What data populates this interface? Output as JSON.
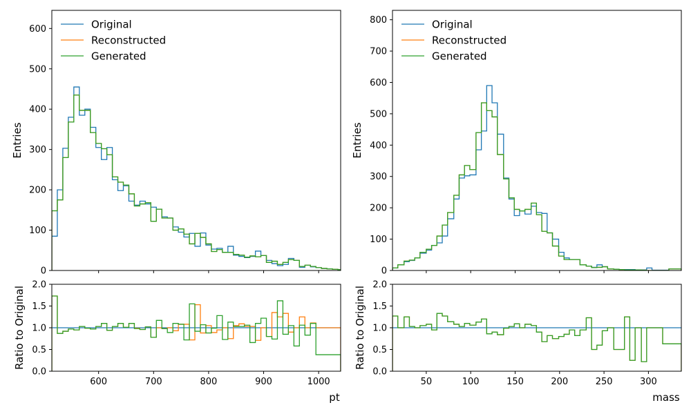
{
  "colors": {
    "original": "#1f77b4",
    "reconstructed": "#ff7f0e",
    "generated": "#2ca02c",
    "reference_line": "#1f77b4"
  },
  "chart_data": [
    {
      "type": "step-histogram",
      "xlabel": "",
      "ylabel": "Entries",
      "xlim": [
        515,
        1040
      ],
      "ylim": [
        0,
        645
      ],
      "xticks": [
        600,
        700,
        800,
        900,
        1000
      ],
      "xticklabels": [
        "",
        "",
        "",
        "",
        ""
      ],
      "yticks": [
        0,
        100,
        200,
        300,
        400,
        500,
        600
      ],
      "yticklabels": [
        "0",
        "100",
        "200",
        "300",
        "400",
        "500",
        "600"
      ],
      "legend_position": "upper-left",
      "bin_edges": [
        515,
        525,
        535,
        545,
        555,
        565,
        575,
        585,
        595,
        605,
        615,
        625,
        635,
        645,
        655,
        665,
        675,
        685,
        695,
        705,
        715,
        725,
        735,
        745,
        755,
        765,
        775,
        785,
        795,
        805,
        815,
        825,
        835,
        845,
        855,
        865,
        875,
        885,
        895,
        905,
        915,
        925,
        935,
        945,
        955,
        965,
        975,
        985,
        995,
        1005,
        1015,
        1025,
        1035,
        1040
      ],
      "series": [
        {
          "name": "Original",
          "values": [
            85,
            200,
            303,
            380,
            455,
            385,
            400,
            355,
            305,
            275,
            305,
            225,
            198,
            210,
            172,
            162,
            172,
            165,
            157,
            152,
            133,
            130,
            108,
            95,
            83,
            92,
            60,
            93,
            63,
            53,
            55,
            45,
            60,
            38,
            35,
            32,
            35,
            48,
            37,
            25,
            17,
            12,
            15,
            30,
            25,
            8,
            13,
            9,
            7,
            5,
            4,
            3,
            2
          ]
        },
        {
          "name": "Reconstructed",
          "values": [
            148,
            175,
            280,
            368,
            435,
            397,
            397,
            342,
            315,
            302,
            287,
            232,
            219,
            212,
            190,
            160,
            165,
            168,
            122,
            152,
            130,
            130,
            100,
            103,
            90,
            66,
            92,
            82,
            66,
            47,
            52,
            45,
            45,
            40,
            38,
            33,
            36,
            34,
            37,
            20,
            23,
            15,
            20,
            27,
            25,
            10,
            13,
            10,
            7,
            5,
            4,
            3,
            2
          ]
        },
        {
          "name": "Generated",
          "values": [
            148,
            175,
            280,
            368,
            435,
            397,
            397,
            342,
            315,
            302,
            287,
            232,
            219,
            212,
            190,
            160,
            165,
            168,
            122,
            152,
            130,
            130,
            100,
            103,
            90,
            66,
            92,
            82,
            66,
            47,
            52,
            45,
            45,
            40,
            38,
            33,
            36,
            34,
            37,
            20,
            23,
            15,
            20,
            27,
            25,
            10,
            13,
            10,
            7,
            5,
            4,
            3,
            2
          ]
        }
      ]
    },
    {
      "type": "step-histogram",
      "xlabel": "",
      "ylabel": "Entries",
      "xlim": [
        12,
        337
      ],
      "ylim": [
        0,
        830
      ],
      "xticks": [
        50,
        100,
        150,
        200,
        250,
        300
      ],
      "xticklabels": [
        "",
        "",
        "",
        "",
        "",
        ""
      ],
      "yticks": [
        0,
        100,
        200,
        300,
        400,
        500,
        600,
        700,
        800
      ],
      "yticklabels": [
        "0",
        "100",
        "200",
        "300",
        "400",
        "500",
        "600",
        "700",
        "800"
      ],
      "legend_position": "upper-left",
      "bin_edges": [
        12,
        18,
        25,
        31,
        37,
        43,
        50,
        56,
        62,
        68,
        74,
        81,
        87,
        93,
        99,
        106,
        112,
        118,
        124,
        130,
        137,
        143,
        149,
        155,
        161,
        168,
        174,
        180,
        186,
        192,
        199,
        205,
        211,
        217,
        223,
        230,
        236,
        242,
        248,
        254,
        261,
        267,
        273,
        279,
        285,
        292,
        298,
        304,
        310,
        316,
        323,
        329,
        337
      ],
      "series": [
        {
          "name": "Original",
          "values": [
            8,
            18,
            28,
            32,
            40,
            55,
            65,
            80,
            88,
            110,
            165,
            228,
            295,
            302,
            305,
            385,
            445,
            590,
            535,
            435,
            295,
            228,
            175,
            190,
            180,
            205,
            185,
            182,
            120,
            100,
            58,
            40,
            35,
            35,
            18,
            14,
            10,
            18,
            12,
            5,
            4,
            3,
            3,
            3,
            2,
            2,
            8,
            1,
            1,
            1,
            5,
            5
          ]
        },
        {
          "name": "Reconstructed",
          "values": [
            8,
            18,
            30,
            33,
            40,
            58,
            68,
            80,
            110,
            145,
            185,
            240,
            305,
            335,
            322,
            440,
            535,
            510,
            490,
            370,
            292,
            232,
            195,
            190,
            195,
            215,
            178,
            125,
            120,
            78,
            46,
            35,
            35,
            35,
            18,
            14,
            9,
            10,
            12,
            5,
            4,
            3,
            2,
            2,
            2,
            1,
            0,
            0,
            0,
            0,
            5,
            5
          ]
        },
        {
          "name": "Generated",
          "values": [
            8,
            18,
            30,
            33,
            40,
            58,
            68,
            80,
            110,
            145,
            185,
            240,
            305,
            335,
            322,
            440,
            535,
            510,
            490,
            370,
            292,
            232,
            195,
            190,
            195,
            215,
            178,
            125,
            120,
            78,
            46,
            35,
            35,
            35,
            18,
            14,
            9,
            10,
            12,
            5,
            4,
            3,
            2,
            2,
            2,
            1,
            0,
            0,
            0,
            0,
            5,
            5
          ]
        }
      ]
    },
    {
      "type": "step-ratio",
      "xlabel": "pt",
      "ylabel": "Ratio to Original",
      "xlim": [
        515,
        1040
      ],
      "ylim": [
        0,
        2
      ],
      "reference_line": 1.0,
      "xticks": [
        600,
        700,
        800,
        900,
        1000
      ],
      "xticklabels": [
        "600",
        "700",
        "800",
        "900",
        "1000"
      ],
      "yticks": [
        0,
        0.5,
        1.0,
        1.5,
        2.0
      ],
      "yticklabels": [
        "0.0",
        "0.5",
        "1.0",
        "1.5",
        "2.0"
      ],
      "bin_edges": [
        515,
        525,
        535,
        545,
        555,
        565,
        575,
        585,
        595,
        605,
        615,
        625,
        635,
        645,
        655,
        665,
        675,
        685,
        695,
        705,
        715,
        725,
        735,
        745,
        755,
        765,
        775,
        785,
        795,
        805,
        815,
        825,
        835,
        845,
        855,
        865,
        875,
        885,
        895,
        905,
        915,
        925,
        935,
        945,
        955,
        965,
        975,
        985,
        995,
        1005,
        1015,
        1025,
        1035,
        1040
      ],
      "series": [
        {
          "name": "Reconstructed",
          "values": [
            1.73,
            0.87,
            0.92,
            0.97,
            0.95,
            1.03,
            0.99,
            0.97,
            1.03,
            1.1,
            0.94,
            1.03,
            1.1,
            1.01,
            1.1,
            0.99,
            0.96,
            1.02,
            0.78,
            1.0,
            0.98,
            1.0,
            0.93,
            1.08,
            1.08,
            0.72,
            1.53,
            0.88,
            1.05,
            0.89,
            0.95,
            1.0,
            0.75,
            1.05,
            1.09,
            1.03,
            1.03,
            0.71,
            1.0,
            0.8,
            1.35,
            1.25,
            1.33,
            0.9,
            1.0,
            1.25,
            1.0,
            1.11,
            1.0,
            1.0,
            1.0,
            1.0,
            1.0
          ]
        },
        {
          "name": "Generated",
          "values": [
            1.73,
            0.87,
            0.92,
            0.97,
            0.95,
            1.03,
            0.99,
            0.97,
            1.03,
            1.1,
            0.94,
            1.03,
            1.1,
            1.01,
            1.1,
            0.98,
            0.96,
            1.02,
            0.78,
            1.17,
            0.98,
            0.89,
            1.1,
            1.08,
            0.72,
            1.55,
            0.92,
            1.07,
            0.88,
            0.99,
            1.28,
            0.73,
            1.13,
            1.03,
            1.03,
            1.06,
            0.66,
            1.1,
            1.22,
            0.8,
            0.74,
            1.62,
            0.85,
            1.05,
            0.58,
            1.06,
            0.83,
            1.1,
            0.38,
            0.38,
            0.38,
            0.38,
            0.38
          ]
        }
      ]
    },
    {
      "type": "step-ratio",
      "xlabel": "mass",
      "ylabel": "Ratio to Original",
      "xlim": [
        12,
        337
      ],
      "ylim": [
        0,
        2
      ],
      "reference_line": 1.0,
      "xticks": [
        50,
        100,
        150,
        200,
        250,
        300
      ],
      "xticklabels": [
        "50",
        "100",
        "150",
        "200",
        "250",
        "300"
      ],
      "yticks": [
        0,
        0.5,
        1.0,
        1.5,
        2.0
      ],
      "yticklabels": [
        "0.0",
        "0.5",
        "1.0",
        "1.5",
        "2.0"
      ],
      "bin_edges": [
        12,
        18,
        25,
        31,
        37,
        43,
        50,
        56,
        62,
        68,
        74,
        81,
        87,
        93,
        99,
        106,
        112,
        118,
        124,
        130,
        137,
        143,
        149,
        155,
        161,
        168,
        174,
        180,
        186,
        192,
        199,
        205,
        211,
        217,
        223,
        230,
        236,
        242,
        248,
        254,
        261,
        267,
        273,
        279,
        285,
        292,
        298,
        304,
        310,
        316,
        323,
        329,
        337
      ],
      "series": [
        {
          "name": "Reconstructed",
          "values": [
            1.27,
            1.0,
            1.25,
            1.03,
            1.0,
            1.05,
            1.08,
            0.95,
            1.33,
            1.27,
            1.14,
            1.08,
            1.03,
            1.1,
            1.06,
            1.13,
            1.2,
            0.86,
            0.9,
            0.84,
            0.99,
            1.03,
            1.09,
            1.0,
            1.08,
            1.05,
            0.9,
            0.68,
            0.82,
            0.75,
            0.8,
            0.85,
            0.95,
            0.82,
            0.95,
            1.23,
            0.5,
            0.6,
            0.93,
            1.0,
            0.5,
            0.5,
            1.25,
            0.25,
            1.0,
            0.22,
            1.0,
            1.0,
            1.0,
            0.63,
            0.63,
            0.63
          ]
        },
        {
          "name": "Generated",
          "values": [
            1.27,
            1.0,
            1.25,
            1.03,
            1.0,
            1.05,
            1.08,
            0.95,
            1.33,
            1.27,
            1.14,
            1.08,
            1.03,
            1.1,
            1.06,
            1.13,
            1.2,
            0.86,
            0.9,
            0.84,
            0.99,
            1.03,
            1.09,
            1.0,
            1.08,
            1.05,
            0.9,
            0.68,
            0.82,
            0.75,
            0.8,
            0.85,
            0.95,
            0.82,
            0.95,
            1.23,
            0.5,
            0.6,
            0.93,
            1.0,
            0.5,
            0.5,
            1.25,
            0.25,
            1.0,
            0.22,
            1.0,
            1.0,
            1.0,
            0.63,
            0.63,
            0.63
          ]
        }
      ]
    }
  ]
}
